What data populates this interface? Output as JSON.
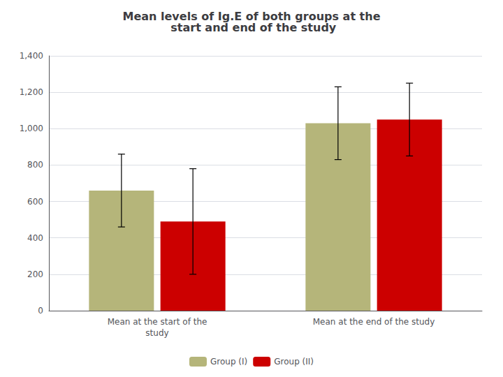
{
  "chart_data": {
    "type": "bar",
    "title": "Mean levels of Ig.E of both groups at the\n start and end of the study",
    "categories": [
      "Mean at the start of the\nstudy",
      "Mean at the end of the study"
    ],
    "series": [
      {
        "name": "Group (I)",
        "color": "#b5b57a",
        "values": [
          660,
          1030
        ],
        "errors": [
          200,
          200
        ]
      },
      {
        "name": "Group (II)",
        "color": "#cc0000",
        "values": [
          490,
          1050
        ],
        "errors": [
          290,
          200
        ]
      }
    ],
    "ylim": [
      0,
      1400
    ],
    "yticks": [
      0,
      200,
      400,
      600,
      800,
      1000,
      1200,
      1400
    ],
    "grid": true,
    "legend": "bottom"
  }
}
